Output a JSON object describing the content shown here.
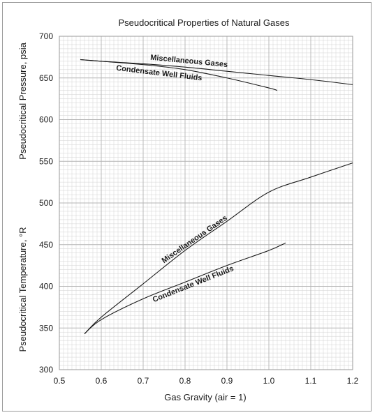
{
  "chart_data": {
    "type": "line",
    "title": "Pseudocritical Properties of Natural Gases",
    "xlabel": "Gas Gravity (air = 1)",
    "ylabel_upper": "Pseudocritical Pressure, psia",
    "ylabel_lower": "Pseudocritical Temperature, °R",
    "xlim": [
      0.5,
      1.2
    ],
    "ylim": [
      300,
      700
    ],
    "x_ticks": [
      "0.5",
      "0.6",
      "0.7",
      "0.8",
      "0.9",
      "1.0",
      "1.1",
      "1.2"
    ],
    "y_ticks": [
      "300",
      "350",
      "400",
      "450",
      "500",
      "550",
      "600",
      "650",
      "700"
    ],
    "grid": true,
    "series": [
      {
        "name": "Miscellaneous Gases",
        "quantity": "pressure",
        "x": [
          0.55,
          0.6,
          0.7,
          0.8,
          0.9,
          1.0,
          1.1,
          1.2
        ],
        "y": [
          672,
          670,
          667,
          663,
          658,
          653,
          648,
          642
        ]
      },
      {
        "name": "Condensate Well Fluids",
        "quantity": "pressure",
        "x": [
          0.55,
          0.6,
          0.7,
          0.8,
          0.9,
          1.0,
          1.02
        ],
        "y": [
          672,
          670,
          666,
          660,
          650,
          638,
          635
        ]
      },
      {
        "name": "Miscellaneous Gases",
        "quantity": "temperature",
        "x": [
          0.56,
          0.6,
          0.7,
          0.8,
          0.9,
          1.0,
          1.1,
          1.2
        ],
        "y": [
          343,
          363,
          403,
          443,
          478,
          513,
          531,
          548
        ]
      },
      {
        "name": "Condensate Well Fluids",
        "quantity": "temperature",
        "x": [
          0.56,
          0.6,
          0.7,
          0.8,
          0.9,
          1.0,
          1.04
        ],
        "y": [
          343,
          360,
          385,
          405,
          425,
          443,
          452
        ]
      }
    ]
  },
  "colors": {
    "grid_major": "#b4b4b4",
    "grid_minor": "#d2d2d2",
    "curve": "#1a1a1a",
    "border": "#9a9a9a"
  }
}
